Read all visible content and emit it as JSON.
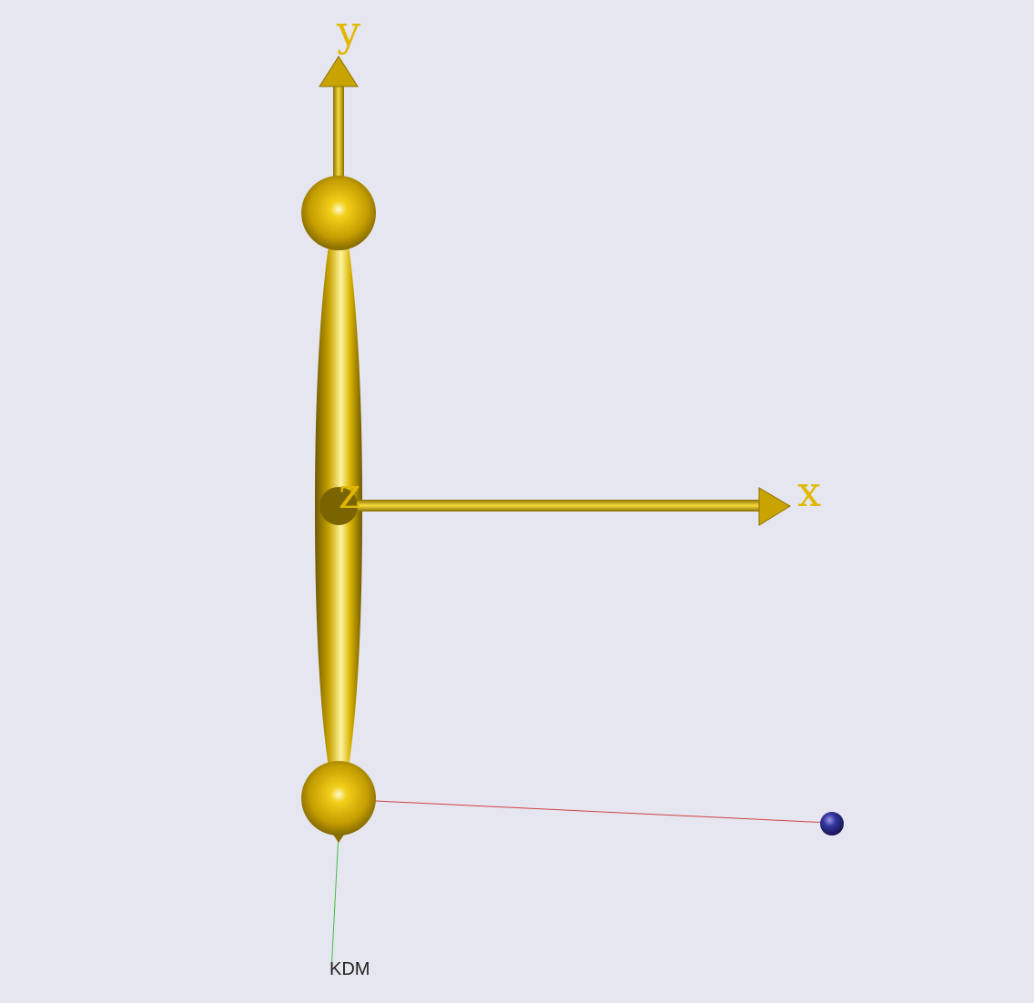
{
  "axes": {
    "x_label": "x",
    "y_label": "y",
    "z_label": "z"
  },
  "annotation": {
    "label": "KDM"
  },
  "colors": {
    "background": "#e6e6f0",
    "gold": "#d4b000",
    "gold_dark": "#7a6400",
    "red_line": "#d04040",
    "green_line": "#40c040",
    "blue_sphere": "#2c2c90"
  }
}
